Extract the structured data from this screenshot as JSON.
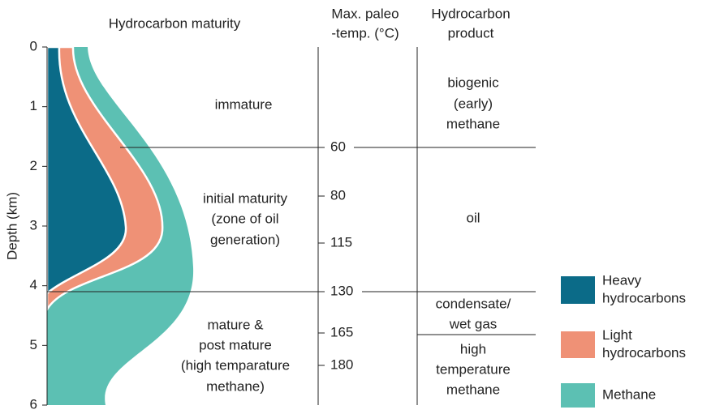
{
  "headers": {
    "maturity": "Hydrocarbon maturity",
    "temperature": [
      "Max. paleo",
      "-temp. (°C)"
    ],
    "product": [
      "Hydrocarbon",
      "product"
    ]
  },
  "depth_axis": {
    "label": "Depth (km)",
    "ticks": [
      0,
      1,
      2,
      3,
      4,
      5,
      6
    ]
  },
  "zones": [
    [
      "immature"
    ],
    [
      "initial maturity",
      "(zone of oil",
      "generation)"
    ],
    [
      "mature &",
      "post mature",
      "(high temparature",
      "methane)"
    ]
  ],
  "temperatures": [
    60,
    80,
    115,
    130,
    165,
    180
  ],
  "products": [
    [
      "biogenic",
      "(early)",
      "methane"
    ],
    [
      "oil"
    ],
    [
      "condensate/",
      "wet gas"
    ],
    [
      "high",
      "temperature",
      "methane"
    ]
  ],
  "legend": [
    {
      "name": "Heavy hydrocarbons",
      "lines": [
        "Heavy",
        "hydrocarbons"
      ],
      "color": "#0b6b88"
    },
    {
      "name": "Light hydrocarbons",
      "lines": [
        "Light",
        "hydrocarbons"
      ],
      "color": "#ef9176"
    },
    {
      "name": "Methane",
      "lines": [
        "Methane"
      ],
      "color": "#5cc0b3"
    }
  ]
}
